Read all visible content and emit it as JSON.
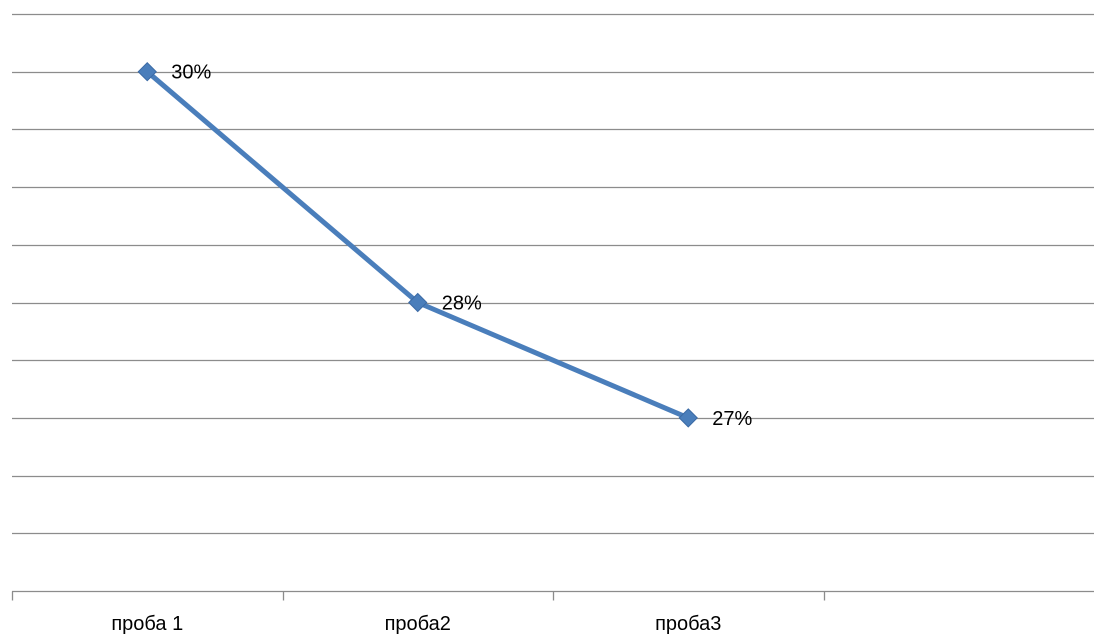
{
  "chart_data": {
    "type": "line",
    "categories": [
      "проба 1",
      "проба2",
      "проба3"
    ],
    "series": [
      {
        "values": [
          30,
          28,
          27
        ],
        "data_labels": [
          "30%",
          "28%",
          "27%"
        ],
        "color": "#4a7ebb",
        "marker": "diamond"
      }
    ],
    "title": "",
    "xlabel": "",
    "ylabel": "",
    "grid": true,
    "x_slots": 4,
    "y_gridline_step": 0.5
  }
}
